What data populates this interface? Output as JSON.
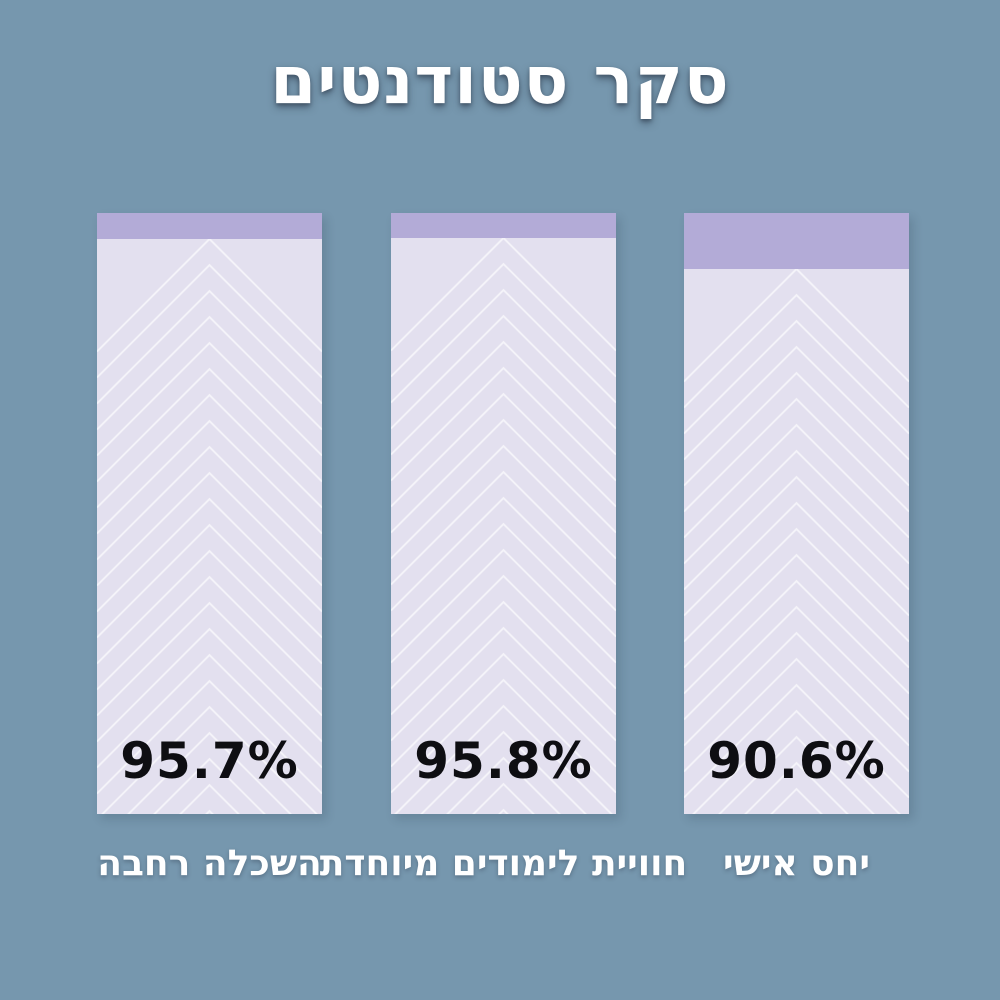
{
  "title": "סקר סטודנטים",
  "direction": "rtl",
  "colors": {
    "background": "#7697ae",
    "bar_fill": "#e3e0ef",
    "bar_remainder_cap": "#b3abd7",
    "chevron_line": "rgba(255,255,255,0.6)",
    "value_text": "#0e0e12",
    "title_text": "#ffffff",
    "category_text": "#ffffff"
  },
  "chart_data": {
    "type": "bar",
    "orientation": "vertical",
    "title": "סקר סטודנטים",
    "ylim": [
      0,
      100
    ],
    "unit": "%",
    "grid": false,
    "legend": "none",
    "note": "Hebrew RTL infographic; categories read right-to-left; bars listed here in visual left-to-right order; light area = value, purple cap = remainder to 100%",
    "categories": [
      "השכלה רחבה",
      "חוויית לימודים מיוחדת",
      "יחס אישי"
    ],
    "values": [
      95.7,
      95.8,
      90.6
    ],
    "bars": [
      {
        "category": "השכלה רחבה",
        "value": 95.7,
        "value_label": "95.7%"
      },
      {
        "category": "חוויית לימודים מיוחדת",
        "value": 95.8,
        "value_label": "95.8%"
      },
      {
        "category": "יחס אישי",
        "value": 90.6,
        "value_label": "90.6%"
      }
    ]
  }
}
